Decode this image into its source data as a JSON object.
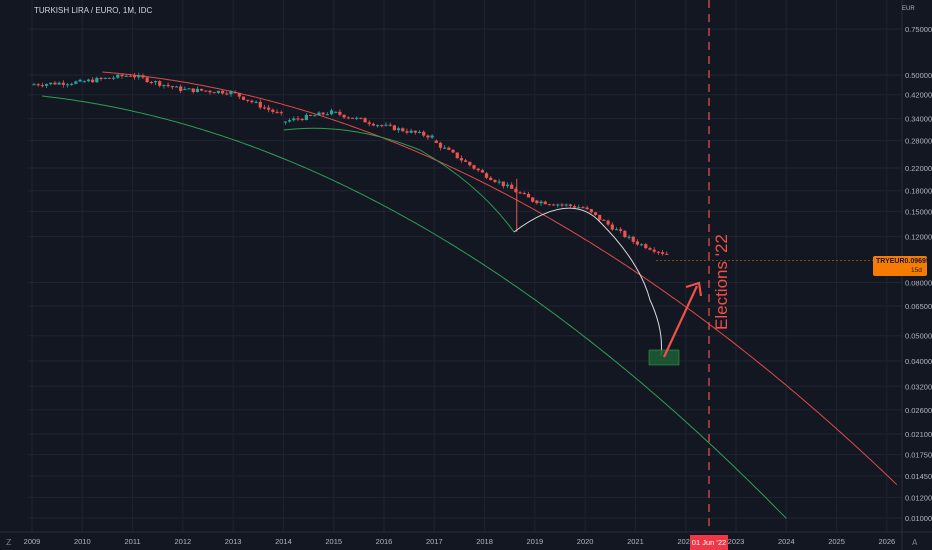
{
  "symbol_title": "TURKISH LIRA / EURO, 1M, IDC",
  "currency": "EUR",
  "last_price": {
    "symbol": "TRYEUR",
    "value": "0.09695",
    "countdown": "15d 21h"
  },
  "crosshair_date": "01 Jun '22",
  "annotation": "Elections '22",
  "corner_icons": {
    "left": "Z",
    "right": "A"
  },
  "colors": {
    "background": "#131722",
    "up": "#26a69a",
    "down": "#ef5350",
    "upper_curve": "#e04a4a",
    "lower_curve": "#2f9e55",
    "arc": "#d8d8d8",
    "arrow": "#f0504a",
    "target_box": "#1e5e33",
    "dashed_line": "#f0504a"
  },
  "chart_data": {
    "type": "candlestick",
    "y_scale": "log",
    "ylim": [
      0.009,
      1.0
    ],
    "y_ticks": [
      "0.75000",
      "0.50000",
      "0.42000",
      "0.34000",
      "0.28000",
      "0.22000",
      "0.18000",
      "0.15000",
      "0.12000",
      "0.09695",
      "0.08000",
      "0.06500",
      "0.05000",
      "0.04000",
      "0.03200",
      "0.02600",
      "0.02100",
      "0.01750",
      "0.01450",
      "0.01200",
      "0.01000"
    ],
    "x_ticks": [
      "2009",
      "2010",
      "2011",
      "2012",
      "2013",
      "2014",
      "2015",
      "2016",
      "2017",
      "2018",
      "2019",
      "2020",
      "2021",
      "2022",
      "2023",
      "2024",
      "2025",
      "2026"
    ],
    "candles_by_year": [
      {
        "year": "2009",
        "open": 0.46,
        "close": 0.47
      },
      {
        "year": "2010",
        "open": 0.47,
        "close": 0.5
      },
      {
        "year": "2011",
        "open": 0.5,
        "close": 0.44
      },
      {
        "year": "2012",
        "open": 0.44,
        "close": 0.43
      },
      {
        "year": "2013",
        "open": 0.43,
        "close": 0.35
      },
      {
        "year": "2014",
        "open": 0.33,
        "close": 0.36
      },
      {
        "year": "2015",
        "open": 0.36,
        "close": 0.32
      },
      {
        "year": "2016",
        "open": 0.32,
        "close": 0.29
      },
      {
        "year": "2017",
        "open": 0.28,
        "close": 0.21
      },
      {
        "year": "2018",
        "open": 0.21,
        "close": 0.165
      },
      {
        "year": "2019",
        "open": 0.165,
        "close": 0.155
      },
      {
        "year": "2020",
        "open": 0.155,
        "close": 0.115
      },
      {
        "year": "2021",
        "open": 0.115,
        "close": 0.097
      }
    ]
  }
}
